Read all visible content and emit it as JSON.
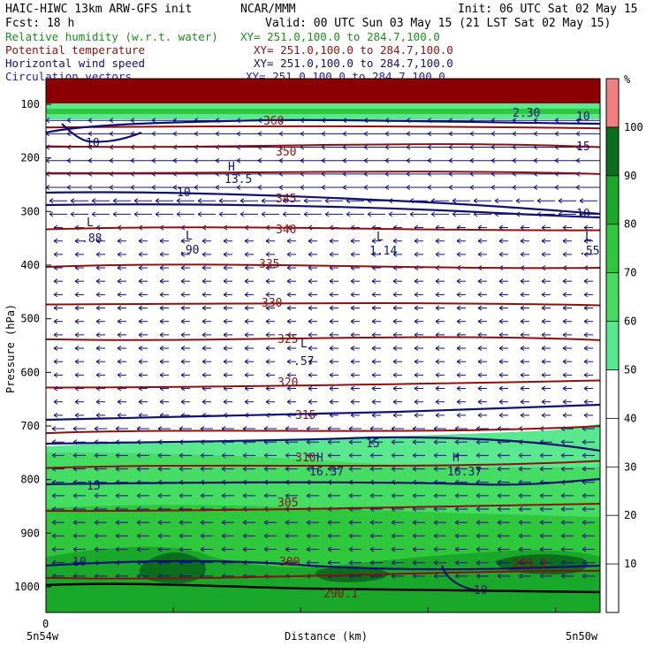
{
  "header": {
    "line1_left": "HAIC-HIWC 13km ARW-GFS init",
    "line1_center": "NCAR/MMM",
    "line1_right": "Init: 06 UTC Sat 02 May 15",
    "fcst": "Fcst:    18 h",
    "valid": "Valid: 00 UTC Sun 03 May 15 (21 LST Sat 02 May 15)"
  },
  "fields": [
    {
      "name": "Relative humidity (w.r.t. water)",
      "xy": "XY= 251.0,100.0 to 284.7,100.0",
      "color": "#1c8c1c"
    },
    {
      "name": "Potential temperature",
      "xy": "XY= 251.0,100.0 to 284.7,100.0",
      "color": "#8b1010"
    },
    {
      "name": "Horizontal wind speed",
      "xy": "XY= 251.0,100.0 to 284.7,100.0",
      "color": "#101070"
    },
    {
      "name": "Circulation vectors",
      "xy": "XY= 251.0,100.0 to 284.7,100.0",
      "color": "#2020b0"
    }
  ],
  "chart_data": {
    "type": "cross-section",
    "xlabel": "Distance (km)",
    "ylabel": "Pressure (hPa)",
    "x_start_tick": "0",
    "x_left_label": "5n54w",
    "x_right_label": "5n50w",
    "y_ticks": [
      100,
      200,
      300,
      400,
      500,
      600,
      700,
      800,
      900,
      1000
    ],
    "y_range_hPa": [
      1050,
      80
    ],
    "colorbar": {
      "unit": "%",
      "ticks": [
        10,
        20,
        30,
        40,
        50,
        60,
        70,
        80,
        90,
        100
      ],
      "levels": [
        {
          "from": 50,
          "to": 60,
          "color": "#5ae88e"
        },
        {
          "from": 60,
          "to": 70,
          "color": "#45dc62"
        },
        {
          "from": 70,
          "to": 80,
          "color": "#2fc83c"
        },
        {
          "from": 80,
          "to": 90,
          "color": "#1aa82a"
        },
        {
          "from": 90,
          "to": 100,
          "color": "#0b6e1c"
        },
        {
          "from": 100,
          "to": 110,
          "color": "#f08080"
        }
      ]
    },
    "theta_contours": [
      {
        "value": "360",
        "p": 140
      },
      {
        "value": "350",
        "p": 175
      },
      {
        "value": "345",
        "p": 225
      },
      {
        "value": "340",
        "p": 330
      },
      {
        "value": "335",
        "p": 400
      },
      {
        "value": "330",
        "p": 470
      },
      {
        "value": "325",
        "p": 535
      },
      {
        "value": "320",
        "p": 625
      },
      {
        "value": "315",
        "p": 710
      },
      {
        "value": "310",
        "p": 775
      },
      {
        "value": "305",
        "p": 855
      },
      {
        "value": "300",
        "p": 980
      },
      {
        "value": "299.3",
        "p": 970
      },
      {
        "value": "290.1",
        "p": 1010
      }
    ],
    "wind_labels": [
      "10",
      "10",
      "10",
      "10",
      "15",
      "15",
      "15",
      "10",
      "10"
    ],
    "annotations": [
      {
        "marker": "H",
        "value": "13.5"
      },
      {
        "marker": "L",
        "value": ".88"
      },
      {
        "marker": "L",
        "value": ".90"
      },
      {
        "marker": "L",
        "value": "1.14"
      },
      {
        "marker": "L",
        "value": ".55"
      },
      {
        "marker": "L",
        "value": ".57"
      },
      {
        "marker": "H",
        "value": "16.37"
      },
      {
        "marker": "H",
        "value": "16.37"
      }
    ],
    "top_right_label": "2.30",
    "vector_direction": "westward, strong near 150-300 hPa"
  }
}
